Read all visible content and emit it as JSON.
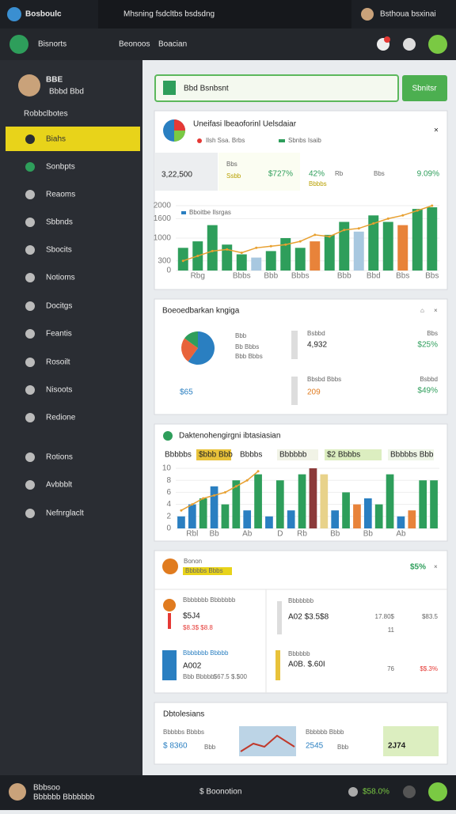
{
  "topbar": {
    "brand": "Bosboulc",
    "search": "Mhsning fsdcltbs bsdsdng",
    "user": "Bsthoua bsxinai"
  },
  "header": {
    "title": "Bisnorts",
    "links": [
      "Beonoos",
      "Boacian"
    ]
  },
  "sidebar": {
    "user_name": "BBE",
    "user_role": "Bbbd Bbd",
    "section": "Robbclbotes",
    "items": [
      "Biahs",
      "Sonbpts",
      "Reaoms",
      "Sbbnds",
      "Sbocits",
      "Notioms",
      "Docitgs",
      "Feantis",
      "Rosoilt",
      "Nisoots",
      "Redione",
      "Rotions",
      "Avbbblt",
      "Nefnrglaclt"
    ]
  },
  "search": {
    "placeholder": "Bbd Bsnbsnt",
    "button": "Sbnitsr"
  },
  "overview": {
    "title": "Uneifasi lbeaoforinl Uelsdaiar",
    "legend": [
      "Ilsh Ssa. Brbs",
      "Sbnbs Isaib"
    ],
    "stats": [
      {
        "value": "3,22,500"
      },
      {
        "label": "Bbs",
        "value": "$727%",
        "note": "Ssbb"
      },
      {
        "value": "42%",
        "label": "Rb",
        "note": "Bbbbs"
      },
      {
        "label": "Bbs",
        "value": "9.09%"
      }
    ],
    "chart": {
      "legend": "Bboitbe Ilsrgas",
      "ylim": [
        0,
        2000
      ],
      "yticks": [
        0,
        300,
        1000,
        1600,
        2000
      ],
      "categories": [
        null,
        "Rbg",
        null,
        null,
        "Bbbs",
        null,
        "Bbb",
        null,
        "Bbbs",
        null,
        null,
        "Bbb",
        null,
        "Bbd",
        null,
        "Bbs",
        null,
        "Bbs"
      ],
      "values": [
        700,
        900,
        1400,
        800,
        500,
        400,
        600,
        1000,
        700,
        900,
        1100,
        1500,
        1200,
        1700,
        1500,
        1400,
        1900,
        1950
      ],
      "colors": [
        "#2e9e5b",
        "#2e9e5b",
        "#2e9e5b",
        "#2e9e5b",
        "#2e9e5b",
        "#a8c8e0",
        "#2e9e5b",
        "#2e9e5b",
        "#2e9e5b",
        "#e8833a",
        "#2e9e5b",
        "#2e9e5b",
        "#a8c8e0",
        "#2e9e5b",
        "#2e9e5b",
        "#e8833a",
        "#2e9e5b",
        "#2e9e5b"
      ],
      "line": [
        300,
        450,
        600,
        650,
        550,
        700,
        750,
        800,
        900,
        1100,
        1050,
        1250,
        1300,
        1450,
        1600,
        1700,
        1850,
        2000
      ],
      "line_color": "#e8a030"
    }
  },
  "breakdown": {
    "title": "Boeoedbarkan kngiga",
    "legend": [
      "Bbb",
      "Bb Bbbs",
      "Bbb Bbbs"
    ],
    "pie": {
      "values": [
        60,
        25,
        15
      ],
      "colors": [
        "#2a7fc1",
        "#e8633a",
        "#2e9e5b"
      ]
    },
    "stats": [
      {
        "label": "Bsbbd",
        "value": "4,932"
      },
      {
        "label": "Bbs",
        "value": "$25%"
      },
      {
        "value": "$65"
      },
      {
        "label": "Bbsbd Bbbs",
        "value": "209"
      },
      {
        "label": "Bsbbd",
        "value": "$49%"
      }
    ]
  },
  "trend": {
    "title": "Daktenohengirgni ibtasiasian",
    "chips": [
      "Bbbbbs",
      "$bbb Bbb",
      "Bbbbs",
      "Bbbbbb",
      "$2 Bbbbs",
      "Bbbbbs Bbb"
    ],
    "chart": {
      "ylim": [
        0,
        10
      ],
      "yticks": [
        0,
        2,
        4,
        6,
        8,
        10
      ],
      "categories": [
        null,
        "Rbl",
        null,
        "Bb",
        null,
        null,
        "Ab",
        null,
        null,
        "D",
        null,
        "Rb",
        null,
        null,
        "Bb",
        null,
        null,
        "Bb",
        null,
        null,
        "Ab",
        null,
        null,
        null
      ],
      "values": [
        2,
        4,
        5,
        7,
        4,
        8,
        3,
        9,
        2,
        8,
        3,
        9,
        10,
        9,
        3,
        6,
        4,
        5,
        4,
        9,
        2,
        3,
        8,
        8
      ],
      "colors": [
        "#2a7fc1",
        "#2a7fc1",
        "#2e9e5b",
        "#2a7fc1",
        "#2e9e5b",
        "#2e9e5b",
        "#2a7fc1",
        "#2e9e5b",
        "#2a7fc1",
        "#2e9e5b",
        "#2a7fc1",
        "#2e9e5b",
        "#8b3a3a",
        "#e8d28a",
        "#2a7fc1",
        "#2e9e5b",
        "#e8833a",
        "#2a7fc1",
        "#2e9e5b",
        "#2e9e5b",
        "#2a7fc1",
        "#e8833a",
        "#2e9e5b",
        "#2e9e5b"
      ],
      "line": [
        3,
        4,
        5,
        5.5,
        6,
        7,
        8,
        9.5,
        null,
        null,
        null,
        null,
        null,
        null,
        null,
        null,
        null,
        null,
        null,
        null,
        null,
        null,
        null,
        null
      ],
      "line_color": "#e8a030"
    }
  },
  "accounts": {
    "title": "Bonon",
    "badge": "Bbbbbs Bbbs",
    "rate": "$5%",
    "left": [
      {
        "label": "Bbbbbbb Bbbbbbb",
        "value": "$5J4",
        "note": "$8.3$ $8.8"
      },
      {
        "label": "Bbbbbbb Bbbbb",
        "value": "A002",
        "note": "Bbb Bbbbb",
        "extra": "$67.5 $.$00"
      }
    ],
    "right": [
      {
        "label": "Bbbbbbb",
        "value": "A02 $3.5$8",
        "a": "17.80$",
        "b": "$83.5",
        "c": "11"
      },
      {
        "label": "Bbbbbb",
        "value": "A0B. $.60I",
        "a": "76",
        "b": "$$.3%"
      }
    ]
  },
  "summary": {
    "title": "Dbtolesians",
    "items": [
      {
        "label": "Bbbbbs Bbbbs",
        "value": "$ 8360",
        "note": "Bbb"
      },
      {
        "label": "Bbbbbb Bbbb",
        "value": "2545",
        "note": "Bbb"
      },
      {
        "value": "2J74"
      }
    ]
  },
  "footer": {
    "name": "Bbbsoo",
    "role": "Bbbbbb Bbbbbbb",
    "center": "$ Boonotion",
    "status": "$58.0%"
  }
}
